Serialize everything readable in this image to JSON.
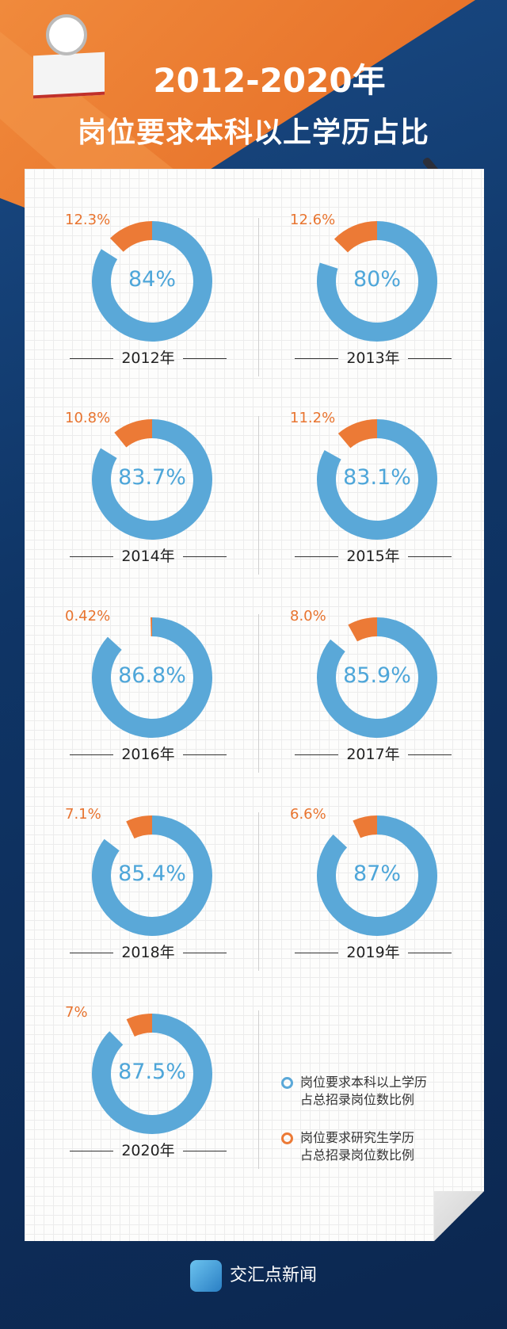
{
  "header": {
    "title_line1": "2012-2020年",
    "title_line2": "岗位要求本科以上学历占比"
  },
  "chart_data": {
    "type": "pie",
    "title": "2012-2020年 岗位要求本科以上学历占比",
    "series_names": [
      "岗位要求本科以上学历占总招录岗位数比例",
      "岗位要求研究生学历占总招录岗位数比例"
    ],
    "items": [
      {
        "year": "2012年",
        "bachelor": 84,
        "bachelor_label": "84%",
        "graduate": 12.3,
        "graduate_label": "12.3%"
      },
      {
        "year": "2013年",
        "bachelor": 80,
        "bachelor_label": "80%",
        "graduate": 12.6,
        "graduate_label": "12.6%"
      },
      {
        "year": "2014年",
        "bachelor": 83.7,
        "bachelor_label": "83.7%",
        "graduate": 10.8,
        "graduate_label": "10.8%"
      },
      {
        "year": "2015年",
        "bachelor": 83.1,
        "bachelor_label": "83.1%",
        "graduate": 11.2,
        "graduate_label": "11.2%"
      },
      {
        "year": "2016年",
        "bachelor": 86.8,
        "bachelor_label": "86.8%",
        "graduate": 0.42,
        "graduate_label": "0.42%"
      },
      {
        "year": "2017年",
        "bachelor": 85.9,
        "bachelor_label": "85.9%",
        "graduate": 8.0,
        "graduate_label": "8.0%"
      },
      {
        "year": "2018年",
        "bachelor": 85.4,
        "bachelor_label": "85.4%",
        "graduate": 7.1,
        "graduate_label": "7.1%"
      },
      {
        "year": "2019年",
        "bachelor": 87,
        "bachelor_label": "87%",
        "graduate": 6.6,
        "graduate_label": "6.6%"
      },
      {
        "year": "2020年",
        "bachelor": 87.5,
        "bachelor_label": "87.5%",
        "graduate": 7,
        "graduate_label": "7%"
      }
    ],
    "colors": {
      "bachelor": "#5aa8d8",
      "graduate": "#ec7a36"
    }
  },
  "legend": {
    "items": [
      {
        "line1": "岗位要求本科以上学历",
        "line2": "占总招录岗位数比例"
      },
      {
        "line1": "岗位要求研究生学历",
        "line2": "占总招录岗位数比例"
      }
    ]
  },
  "footer": {
    "brand": "交汇点新闻"
  }
}
